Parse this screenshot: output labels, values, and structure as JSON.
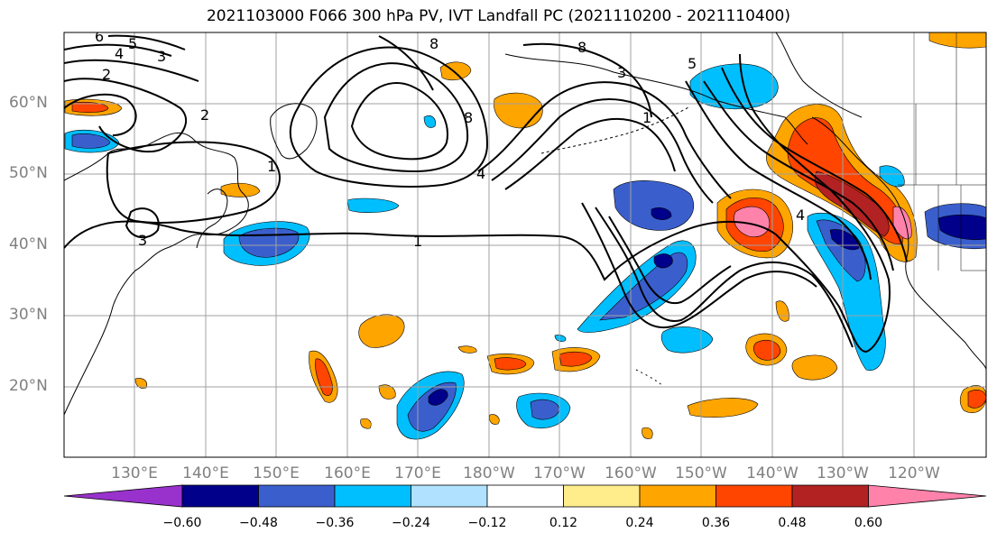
{
  "title": "2021103000 F066 300 hPa PV, IVT Landfall PC (2021110200 - 2021110400)",
  "lat_labels": [
    "60°N",
    "50°N",
    "40°N",
    "30°N",
    "20°N"
  ],
  "lon_labels": [
    "130°E",
    "140°E",
    "150°E",
    "160°E",
    "170°E",
    "180°W",
    "170°W",
    "160°W",
    "150°W",
    "140°W",
    "130°W",
    "120°W"
  ],
  "colorbar": {
    "ticks": [
      "−0.60",
      "−0.48",
      "−0.36",
      "−0.24",
      "−0.12",
      "0.12",
      "0.24",
      "0.36",
      "0.48",
      "0.60"
    ],
    "colors": [
      "#9932cc",
      "#00008b",
      "#3a5fcd",
      "#00bfff",
      "#b0e2ff",
      "#ffffff",
      "#ffec8b",
      "#ffa500",
      "#ff4500",
      "#b22222",
      "#ff82ab"
    ]
  },
  "contour_labels": {
    "c6": "6",
    "c5": "5",
    "c4a": "4",
    "c3": "3",
    "c2a": "2",
    "c2b": "2",
    "c1a": "1",
    "c1b": "1",
    "c8a": "8",
    "c8b": "8",
    "c8c": "8",
    "c4b": "4",
    "c3b": "3",
    "c5b": "5",
    "c1c": "1",
    "c4c": "4",
    "c3c": "3"
  },
  "colors": {
    "grid": "#a0a0a0",
    "coast": "#000000",
    "tick_text": "#808080"
  }
}
